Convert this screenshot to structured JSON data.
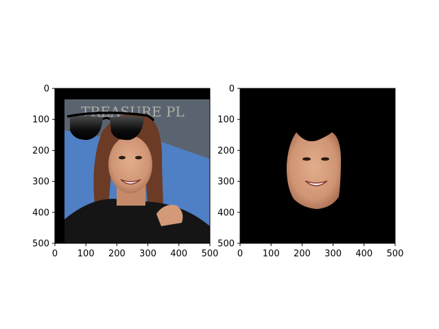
{
  "chart_data": [
    {
      "type": "image",
      "title": "",
      "xlabel": "",
      "ylabel": "",
      "xlim": [
        0,
        500
      ],
      "ylim": [
        500,
        0
      ],
      "x_ticks": [
        0,
        100,
        200,
        300,
        400,
        500
      ],
      "y_ticks": [
        0,
        100,
        200,
        300,
        400,
        500
      ],
      "content": "photo",
      "overlay_icon": "sunglasses-icon",
      "colors": {
        "sky": "#4f7fc4",
        "banner": "#5a6470",
        "hair": "#6b3b26",
        "skin": "#d39a7a",
        "shirt": "#151515",
        "frame": "#000000"
      }
    },
    {
      "type": "image",
      "title": "",
      "xlabel": "",
      "ylabel": "",
      "xlim": [
        0,
        500
      ],
      "ylim": [
        500,
        0
      ],
      "x_ticks": [
        0,
        100,
        200,
        300,
        400,
        500
      ],
      "y_ticks": [
        0,
        100,
        200,
        300,
        400,
        500
      ],
      "content": "face-mask",
      "colors": {
        "background": "#000000",
        "skin": "#d39a7a"
      }
    }
  ]
}
